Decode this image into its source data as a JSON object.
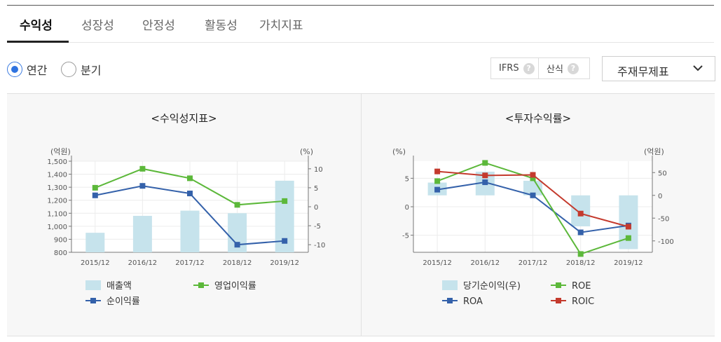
{
  "tabs": [
    {
      "label": "수익성",
      "active": true
    },
    {
      "label": "성장성",
      "active": false
    },
    {
      "label": "안정성",
      "active": false
    },
    {
      "label": "활동성",
      "active": false
    },
    {
      "label": "가치지표",
      "active": false
    }
  ],
  "period": {
    "annual_label": "연간",
    "quarter_label": "분기",
    "selected": "연간"
  },
  "toolbar": {
    "ifrs_label": "IFRS",
    "formula_label": "산식",
    "help_glyph": "?",
    "statement_select": "주재무제표"
  },
  "icons": {
    "help": "help-icon",
    "dropdown": "chevron-down-icon"
  },
  "colors": {
    "bar": "#c6e3ec",
    "blue": "#3461aa",
    "green": "#5cb83a",
    "red": "#c43a2d",
    "radio": "#2f73e0"
  },
  "chart_data": [
    {
      "type": "bar+line",
      "title": "<수익성지표>",
      "left_unit": "(억원)",
      "right_unit": "(%)",
      "categories": [
        "2015/12",
        "2016/12",
        "2017/12",
        "2018/12",
        "2019/12"
      ],
      "left_axis": {
        "range": [
          800,
          1500
        ],
        "ticks": [
          800,
          900,
          "1,000",
          "1,100",
          "1,200",
          "1,300",
          "1,400",
          "1,500"
        ]
      },
      "right_axis": {
        "range": [
          -12,
          12
        ],
        "ticks": [
          -10,
          -5,
          0,
          5,
          10
        ]
      },
      "series": [
        {
          "name": "매출액",
          "kind": "bar",
          "axis": "left",
          "values": [
            950,
            1080,
            1120,
            1100,
            1350
          ]
        },
        {
          "name": "영업이익률",
          "kind": "line",
          "axis": "right",
          "color": "green",
          "values": [
            5,
            10,
            7.5,
            0.5,
            1.5
          ]
        },
        {
          "name": "순이익률",
          "kind": "line",
          "axis": "right",
          "color": "blue",
          "values": [
            3,
            5.5,
            3.5,
            -10,
            -9
          ]
        }
      ],
      "legend": [
        {
          "name": "매출액",
          "kind": "bar"
        },
        {
          "name": "영업이익률",
          "kind": "line",
          "color": "green"
        },
        {
          "name": "순이익률",
          "kind": "line",
          "color": "blue"
        }
      ],
      "legend_position": "bottom"
    },
    {
      "type": "bar+line",
      "title": "<투자수익률>",
      "left_unit": "(%)",
      "right_unit": "(억원)",
      "categories": [
        "2015/12",
        "2016/12",
        "2017/12",
        "2018/12",
        "2019/12"
      ],
      "left_axis": {
        "range": [
          -8,
          8
        ],
        "ticks": [
          -5,
          0,
          5
        ]
      },
      "right_axis": {
        "range": [
          -125,
          75
        ],
        "ticks": [
          -100,
          -50,
          0,
          50
        ]
      },
      "series": [
        {
          "name": "당기순이익(우)",
          "kind": "bar",
          "axis": "right",
          "values": [
            28,
            52,
            32,
            -68,
            -118
          ]
        },
        {
          "name": "ROA",
          "kind": "line",
          "axis": "left",
          "color": "blue",
          "values": [
            3,
            4.3,
            2,
            -4.5,
            -3.3
          ]
        },
        {
          "name": "ROE",
          "kind": "line",
          "axis": "left",
          "color": "green",
          "values": [
            4.5,
            7.7,
            5,
            -8.3,
            -5.5
          ]
        },
        {
          "name": "ROIC",
          "kind": "line",
          "axis": "left",
          "color": "red",
          "values": [
            6.2,
            5.5,
            5.6,
            -1.2,
            -3.5
          ]
        }
      ],
      "legend": [
        {
          "name": "당기순이익(우)",
          "kind": "bar"
        },
        {
          "name": "ROE",
          "kind": "line",
          "color": "green"
        },
        {
          "name": "ROA",
          "kind": "line",
          "color": "blue"
        },
        {
          "name": "ROIC",
          "kind": "line",
          "color": "red"
        }
      ],
      "legend_position": "bottom"
    }
  ]
}
